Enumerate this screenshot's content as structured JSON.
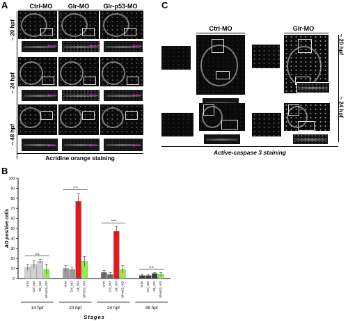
{
  "panel_a": {
    "letter": "A",
    "columns": [
      "Ctrl-MO",
      "Glr-MO",
      "Glr-p53-MO"
    ],
    "rows": [
      "~ 20 hpf",
      "~ 24 hpf",
      "~ 48 hpf"
    ],
    "caption": "Acridine orange staining"
  },
  "panel_b": {
    "letter": "B"
  },
  "panel_c": {
    "letter": "C",
    "columns": [
      "Ctrl-MO",
      "Glr-MO"
    ],
    "rows": [
      "~ 20 hpf",
      "~ 24 hpf"
    ],
    "caption": "Active-caspase 3 staining"
  },
  "chart_data": {
    "type": "bar",
    "ylabel": "AO positive cells",
    "xlabel": "Stages",
    "ylim": [
      0,
      100
    ],
    "yticks": [
      0,
      10,
      20,
      30,
      40,
      50,
      60,
      70,
      80,
      90,
      100
    ],
    "groups": [
      "14 hpf",
      "20 hpf",
      "24 hpf",
      "48 hpf"
    ],
    "bar_labels": [
      "Unin",
      "Ctrl_MO",
      "Glr_MO",
      "Glr+p53_MO"
    ],
    "series": [
      {
        "name": "Unin",
        "values": [
          11,
          10,
          6,
          3
        ],
        "errors": [
          3,
          3,
          2,
          1
        ],
        "colors": [
          "#d0d0d0",
          "#9c9c9c",
          "#6a6a6a",
          "#3c3c3c"
        ]
      },
      {
        "name": "Ctrl_MO",
        "values": [
          14,
          9,
          4,
          3
        ],
        "errors": [
          4,
          2,
          2,
          1
        ],
        "colors": [
          "#d0d0d0",
          "#9c9c9c",
          "#6a6a6a",
          "#3c3c3c"
        ]
      },
      {
        "name": "Glr_MO",
        "values": [
          17,
          77,
          47,
          5
        ],
        "errors": [
          2,
          8,
          5,
          1
        ],
        "colors": [
          "#d0d0d0",
          "#e41b1b",
          "#e41b1b",
          "#3c3c3c"
        ]
      },
      {
        "name": "Glr+p53_MO",
        "values": [
          9,
          17,
          9,
          4
        ],
        "errors": [
          5,
          5,
          4,
          2
        ],
        "colors": [
          "#8ef04a",
          "#8ef04a",
          "#8ef04a",
          "#8ef04a"
        ]
      }
    ],
    "significance": [
      {
        "group": 0,
        "label": "n.s."
      },
      {
        "group": 1,
        "label": "****"
      },
      {
        "group": 2,
        "label": "****"
      },
      {
        "group": 3,
        "label": "n.s."
      }
    ]
  }
}
